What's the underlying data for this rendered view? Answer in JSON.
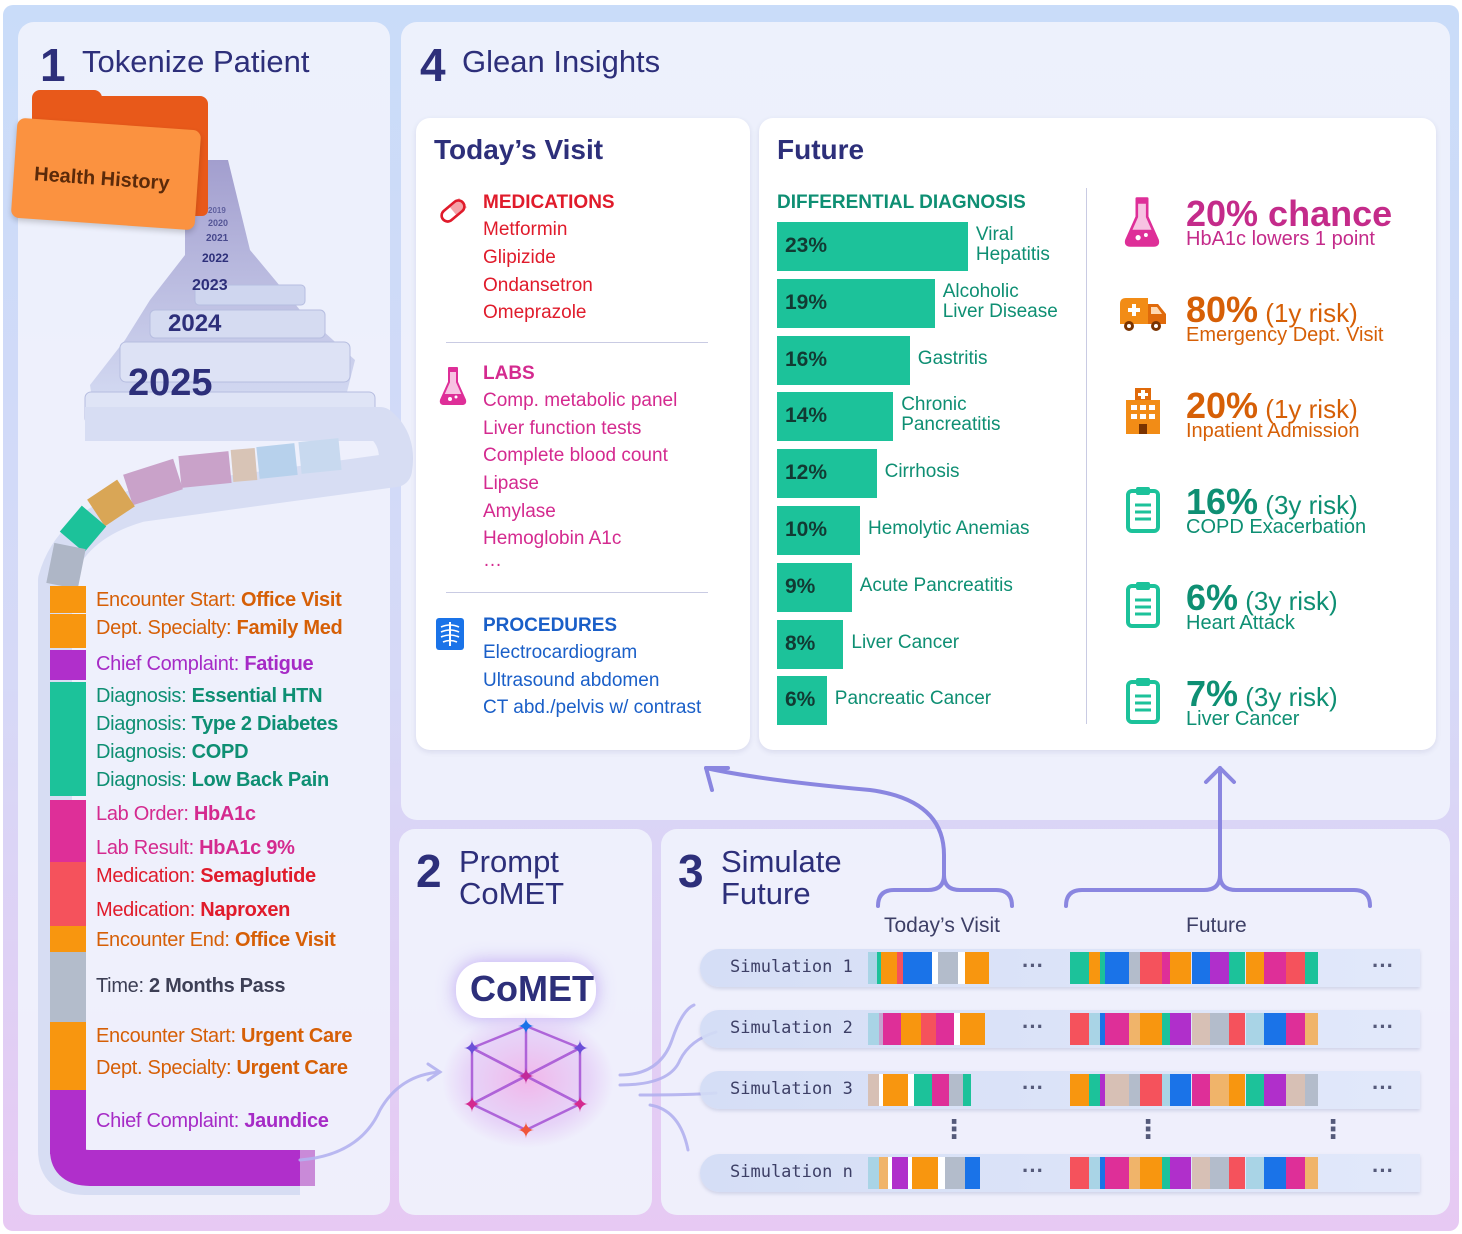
{
  "steps": {
    "s1": {
      "num": "1",
      "title": "Tokenize Patient"
    },
    "s2": {
      "num": "2",
      "title_l1": "Prompt",
      "title_l2": "CoMET"
    },
    "s3": {
      "num": "3",
      "title_l1": "Simulate",
      "title_l2": "Future"
    },
    "s4": {
      "num": "4",
      "title": "Glean Insights"
    }
  },
  "health_history": {
    "folder_label": "Health History",
    "years": [
      "2019",
      "2020",
      "2021",
      "2022",
      "2023",
      "2024",
      "2025"
    ]
  },
  "events": [
    {
      "label": "Encounter Start: ",
      "value": "Office Visit",
      "color": "#d65f06",
      "swatch": "#f8960f"
    },
    {
      "label": "Dept. Specialty: ",
      "value": "Family Med",
      "color": "#d65f06",
      "swatch": "#f8960f"
    },
    {
      "label": "Chief Complaint: ",
      "value": "Fatigue",
      "color": "#a62bc6",
      "swatch": "#b02fcb"
    },
    {
      "label": "Diagnosis: ",
      "value": "Essential HTN",
      "color": "#0e8f73",
      "swatch": "#1cc29a"
    },
    {
      "label": "Diagnosis: ",
      "value": "Type 2 Diabetes",
      "color": "#0e8f73",
      "swatch": "#1cc29a"
    },
    {
      "label": "Diagnosis: ",
      "value": "COPD",
      "color": "#0e8f73",
      "swatch": "#1cc29a"
    },
    {
      "label": "Diagnosis: ",
      "value": "Low Back Pain",
      "color": "#0e8f73",
      "swatch": "#1cc29a"
    },
    {
      "label": "Lab Order: ",
      "value": "HbA1c",
      "color": "#d42a8f",
      "swatch": "#de2f98"
    },
    {
      "label": "Lab Result: ",
      "value": "HbA1c 9%",
      "color": "#d42a8f",
      "swatch": "#de2f98"
    },
    {
      "label": "Medication: ",
      "value": "Semaglutide",
      "color": "#e01b2b",
      "swatch": "#f5525c"
    },
    {
      "label": "Medication: ",
      "value": "Naproxen",
      "color": "#e01b2b",
      "swatch": "#f5525c"
    },
    {
      "label": "Encounter End: ",
      "value": "Office Visit",
      "color": "#d65f06",
      "swatch": "#f8960f"
    },
    {
      "label": "Time: ",
      "value": "2 Months Pass",
      "color": "#3d3f55",
      "swatch": "#b3bccb"
    },
    {
      "label": "Encounter Start: ",
      "value": "Urgent Care",
      "color": "#d65f06",
      "swatch": "#f8960f"
    },
    {
      "label": "Dept. Specialty: ",
      "value": "Urgent Care",
      "color": "#d65f06",
      "swatch": "#f8960f"
    },
    {
      "label": "Chief Complaint: ",
      "value": "Jaundice",
      "color": "#a62bc6",
      "swatch": "#b02fcb"
    }
  ],
  "todays_visit": {
    "title": "Today’s Visit",
    "medications": {
      "head": "MEDICATIONS",
      "items": [
        "Metformin",
        "Glipizide",
        "Ondansetron",
        "Omeprazole"
      ]
    },
    "labs": {
      "head": "LABS",
      "items": [
        "Comp. metabolic panel",
        "Liver function tests",
        "Complete blood count",
        "Lipase",
        "Amylase",
        "Hemoglobin A1c",
        "…"
      ]
    },
    "procedures": {
      "head": "PROCEDURES",
      "items": [
        "Electrocardiogram",
        "Ultrasound abdomen",
        "CT abd./pelvis w/ contrast"
      ]
    }
  },
  "future": {
    "title": "Future",
    "dd_head": "DIFFERENTIAL DIAGNOSIS",
    "insights": [
      {
        "big": "20% chance",
        "risk": "",
        "sub": "HbA1c lowers 1 point",
        "color": "#c42b8a",
        "icon": "flask-icon"
      },
      {
        "big": "80%",
        "risk": " (1y risk)",
        "sub": "Emergency Dept. Visit",
        "color": "#d65f06",
        "icon": "ambulance-icon"
      },
      {
        "big": "20%",
        "risk": " (1y risk)",
        "sub": "Inpatient Admission",
        "color": "#d65f06",
        "icon": "hospital-icon"
      },
      {
        "big": "16%",
        "risk": " (3y risk)",
        "sub": "COPD Exacerbation",
        "color": "#0e8f73",
        "icon": "clipboard-icon"
      },
      {
        "big": "6%",
        "risk": " (3y risk)",
        "sub": "Heart Attack",
        "color": "#0e8f73",
        "icon": "clipboard-icon"
      },
      {
        "big": "7%",
        "risk": " (3y risk)",
        "sub": "Liver Cancer",
        "color": "#0e8f73",
        "icon": "clipboard-icon"
      }
    ]
  },
  "chart_data": {
    "type": "bar",
    "title": "DIFFERENTIAL DIAGNOSIS",
    "orientation": "horizontal",
    "categories": [
      "Viral Hepatitis",
      "Alcoholic Liver Disease",
      "Gastritis",
      "Chronic Pancreatitis",
      "Cirrhosis",
      "Hemolytic Anemias",
      "Acute Pancreatitis",
      "Liver Cancer",
      "Pancreatic Cancer"
    ],
    "values": [
      23,
      19,
      16,
      14,
      12,
      10,
      9,
      8,
      6
    ],
    "value_labels": [
      "23%",
      "19%",
      "16%",
      "14%",
      "12%",
      "10%",
      "9%",
      "8%",
      "6%"
    ],
    "bar_color": "#1cc29a"
  },
  "comet": {
    "label": "CoMET"
  },
  "simulation": {
    "col_today": "Today’s Visit",
    "col_future": "Future",
    "rows": [
      "Simulation 1",
      "Simulation 2",
      "Simulation 3",
      "Simulation n"
    ],
    "ellipsis": "···",
    "vertical_ellipsis": "⋮"
  },
  "colors": {
    "navy": "#2d2f7a",
    "teal": "#1cc29a",
    "orange": "#f8960f",
    "magenta": "#de2f98",
    "red": "#f5525c",
    "purple": "#b02fcb",
    "blue": "#1a73e8",
    "grey": "#b3bccb",
    "arrow": "#8a86e0"
  }
}
